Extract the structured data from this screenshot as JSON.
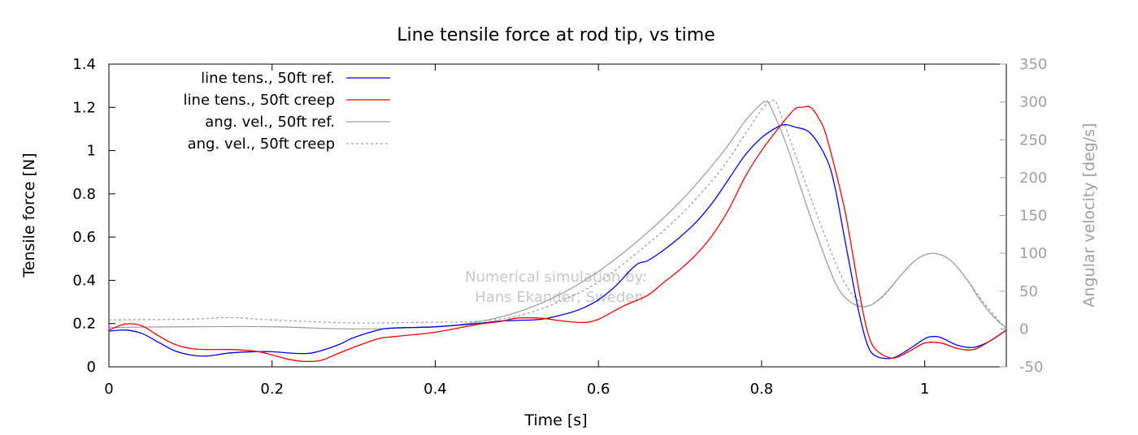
{
  "chart_data": {
    "type": "line",
    "title": "Line tensile force at rod tip, vs time",
    "xlabel": "Time [s]",
    "ylabel": "Tensile force [N]",
    "y2label": "Angular velocity [deg/s]",
    "xlim": [
      0,
      1.1
    ],
    "ylim": [
      0,
      1.4
    ],
    "y2lim": [
      -50,
      350
    ],
    "xticks": [
      0,
      0.2,
      0.4,
      0.6,
      0.8,
      1
    ],
    "yticks": [
      0,
      0.2,
      0.4,
      0.6,
      0.8,
      1,
      1.2,
      1.4
    ],
    "y2ticks": [
      -50,
      0,
      50,
      100,
      150,
      200,
      250,
      300,
      350
    ],
    "legend_position": "top-left",
    "grid": false,
    "annotation": [
      "Numerical simulation by:",
      "Hans Ekander, Sweden"
    ],
    "series": [
      {
        "name": "line tens., 50ft ref.",
        "axis": "left",
        "color": "#0000ff",
        "dash": "solid",
        "x": [
          0,
          0.02,
          0.04,
          0.06,
          0.08,
          0.1,
          0.12,
          0.15,
          0.18,
          0.2,
          0.23,
          0.25,
          0.28,
          0.3,
          0.33,
          0.35,
          0.4,
          0.45,
          0.48,
          0.5,
          0.53,
          0.56,
          0.58,
          0.6,
          0.62,
          0.64,
          0.65,
          0.66,
          0.68,
          0.7,
          0.72,
          0.74,
          0.76,
          0.78,
          0.8,
          0.82,
          0.83,
          0.84,
          0.86,
          0.88,
          0.89,
          0.9,
          0.91,
          0.92,
          0.93,
          0.94,
          0.96,
          0.98,
          1.0,
          1.01,
          1.02,
          1.04,
          1.06,
          1.08,
          1.1
        ],
        "y": [
          0.165,
          0.17,
          0.155,
          0.115,
          0.075,
          0.055,
          0.05,
          0.065,
          0.07,
          0.07,
          0.062,
          0.065,
          0.1,
          0.135,
          0.17,
          0.18,
          0.185,
          0.2,
          0.212,
          0.215,
          0.22,
          0.245,
          0.27,
          0.31,
          0.37,
          0.45,
          0.48,
          0.49,
          0.54,
          0.6,
          0.67,
          0.76,
          0.87,
          0.98,
          1.06,
          1.11,
          1.12,
          1.11,
          1.08,
          0.96,
          0.83,
          0.63,
          0.43,
          0.24,
          0.1,
          0.05,
          0.04,
          0.08,
          0.13,
          0.14,
          0.135,
          0.1,
          0.09,
          0.12,
          0.17
        ]
      },
      {
        "name": "line tens., 50ft creep",
        "axis": "left",
        "color": "#ff0000",
        "dash": "solid",
        "x": [
          0,
          0.02,
          0.04,
          0.06,
          0.08,
          0.1,
          0.12,
          0.15,
          0.18,
          0.2,
          0.22,
          0.24,
          0.26,
          0.28,
          0.3,
          0.33,
          0.35,
          0.4,
          0.45,
          0.48,
          0.5,
          0.53,
          0.55,
          0.58,
          0.6,
          0.63,
          0.66,
          0.68,
          0.7,
          0.72,
          0.74,
          0.76,
          0.78,
          0.8,
          0.82,
          0.84,
          0.85,
          0.86,
          0.87,
          0.88,
          0.9,
          0.91,
          0.92,
          0.93,
          0.94,
          0.96,
          0.98,
          1.0,
          1.02,
          1.04,
          1.06,
          1.08,
          1.1
        ],
        "y": [
          0.17,
          0.198,
          0.19,
          0.145,
          0.105,
          0.085,
          0.08,
          0.08,
          0.072,
          0.055,
          0.035,
          0.025,
          0.03,
          0.06,
          0.09,
          0.13,
          0.14,
          0.16,
          0.195,
          0.21,
          0.225,
          0.225,
          0.215,
          0.205,
          0.22,
          0.28,
          0.33,
          0.39,
          0.45,
          0.52,
          0.61,
          0.73,
          0.88,
          1.0,
          1.1,
          1.19,
          1.2,
          1.2,
          1.15,
          1.06,
          0.76,
          0.56,
          0.34,
          0.16,
          0.08,
          0.04,
          0.07,
          0.11,
          0.11,
          0.085,
          0.08,
          0.12,
          0.17
        ]
      },
      {
        "name": "ang. vel., 50ft ref.",
        "axis": "right",
        "color": "#a0a0a0",
        "dash": "solid",
        "x": [
          0,
          0.1,
          0.2,
          0.3,
          0.4,
          0.45,
          0.5,
          0.55,
          0.6,
          0.65,
          0.7,
          0.75,
          0.78,
          0.8,
          0.805,
          0.81,
          0.83,
          0.86,
          0.89,
          0.91,
          0.93,
          0.95,
          0.97,
          0.99,
          1.01,
          1.03,
          1.05,
          1.07,
          1.09,
          1.1
        ],
        "y": [
          2,
          3,
          3,
          0,
          3,
          9,
          22,
          44,
          76,
          118,
          168,
          230,
          275,
          298,
          300,
          296,
          245,
          148,
          62,
          35,
          30,
          45,
          70,
          92,
          100,
          92,
          68,
          35,
          10,
          2
        ]
      },
      {
        "name": "ang. vel., 50ft creep",
        "axis": "right",
        "color": "#a0a0a0",
        "dash": "dashed",
        "x": [
          0,
          0.1,
          0.15,
          0.2,
          0.3,
          0.4,
          0.45,
          0.5,
          0.55,
          0.6,
          0.65,
          0.7,
          0.75,
          0.78,
          0.8,
          0.81,
          0.815,
          0.82,
          0.84,
          0.87,
          0.9,
          0.92,
          0.93,
          0.95,
          0.97,
          0.99,
          1.01,
          1.03,
          1.05,
          1.07,
          1.09,
          1.1
        ],
        "y": [
          12,
          13,
          15,
          12,
          8,
          9,
          10,
          17,
          35,
          62,
          103,
          150,
          210,
          258,
          290,
          300,
          302,
          294,
          235,
          145,
          65,
          36,
          30,
          44,
          70,
          92,
          100,
          92,
          68,
          38,
          12,
          0
        ]
      }
    ]
  }
}
